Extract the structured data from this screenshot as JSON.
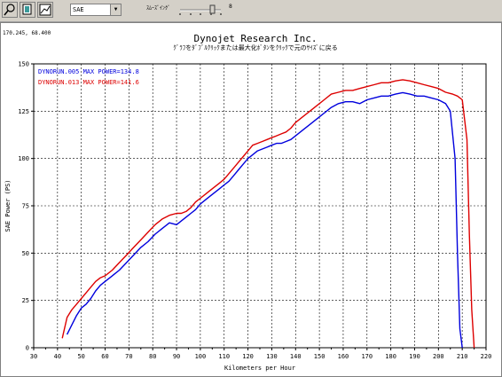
{
  "toolbar": {
    "buttons": [
      "zoom-icon",
      "copy-icon",
      "graph-icon"
    ],
    "correction_select": "SAE",
    "smoothing_label": "ｽﾑｰｽﾞｲﾝｸﾞ",
    "smoothing_value": "8"
  },
  "cursor_readout": "170.245, 68.400",
  "chart_data": {
    "type": "line",
    "title": "Dynojet  Research  Inc.",
    "subtitle": "ｸﾞﾗﾌをﾀﾞﾌﾞﾙｸﾘｯｸまたは最大化ﾎﾞﾀﾝをｸﾘｯｸで元のｻｲｽﾞに戻る",
    "xlabel": "Kilometers per Hour",
    "ylabel": "SAE Power (PS)",
    "xlim": [
      30,
      220
    ],
    "ylim": [
      0,
      150
    ],
    "xticks": [
      "30",
      "40",
      "50",
      "60",
      "70",
      "80",
      "90",
      "100",
      "110",
      "120",
      "130",
      "140",
      "150",
      "160",
      "170",
      "180",
      "190",
      "200",
      "210",
      "220"
    ],
    "yticks": [
      "0",
      "25",
      "50",
      "75",
      "100",
      "125",
      "150"
    ],
    "grid": true,
    "legend_position": "top-left",
    "series": [
      {
        "name": "DYNORUN.005  MAX POWER=134.8",
        "color": "#0000dd",
        "x": [
          44,
          46,
          48,
          50,
          52,
          54,
          56,
          58,
          60,
          63,
          66,
          69,
          72,
          75,
          78,
          81,
          84,
          87,
          90,
          92,
          94,
          96,
          98,
          100,
          102,
          104,
          106,
          108,
          110,
          112,
          114,
          116,
          118,
          120,
          122,
          124,
          126,
          128,
          130,
          132,
          134,
          136,
          138,
          140,
          143,
          146,
          149,
          152,
          155,
          158,
          161,
          164,
          167,
          170,
          173,
          176,
          179,
          182,
          185,
          188,
          191,
          194,
          197,
          200,
          203,
          205,
          207,
          208,
          209,
          210
        ],
        "y": [
          7,
          12,
          17,
          21,
          23,
          26,
          30,
          33,
          35,
          38,
          41,
          45,
          49,
          53,
          56,
          60,
          63,
          66,
          65,
          67,
          69,
          71,
          73,
          76,
          78,
          80,
          82,
          84,
          86,
          88,
          91,
          94,
          97,
          100,
          102,
          104,
          105,
          106,
          107,
          108,
          108,
          109,
          110,
          112,
          115,
          118,
          121,
          124,
          127,
          129,
          130,
          130,
          129,
          131,
          132,
          133,
          133,
          134,
          134.8,
          134,
          133,
          133,
          132,
          131,
          129,
          125,
          100,
          50,
          10,
          0
        ]
      },
      {
        "name": "DYNORUN.013  MAX POWER=141.6",
        "color": "#dd0000",
        "x": [
          42,
          44,
          46,
          48,
          50,
          52,
          54,
          56,
          58,
          60,
          63,
          66,
          69,
          72,
          75,
          78,
          81,
          84,
          87,
          90,
          92,
          94,
          96,
          98,
          100,
          102,
          104,
          106,
          108,
          110,
          112,
          114,
          116,
          118,
          120,
          122,
          124,
          126,
          128,
          130,
          132,
          134,
          136,
          138,
          140,
          143,
          146,
          149,
          152,
          155,
          158,
          161,
          164,
          167,
          170,
          173,
          176,
          179,
          182,
          185,
          188,
          191,
          194,
          197,
          200,
          203,
          206,
          208,
          210,
          212,
          213,
          214,
          215
        ],
        "y": [
          5,
          16,
          20,
          23,
          26,
          29,
          32,
          35,
          37,
          38,
          41,
          45,
          49,
          53,
          57,
          61,
          65,
          68,
          70,
          71,
          71,
          72,
          74,
          77,
          79,
          81,
          83,
          85,
          87,
          89,
          92,
          95,
          98,
          101,
          104,
          107,
          108,
          109,
          110,
          111,
          112,
          113,
          114,
          116,
          119,
          122,
          125,
          128,
          131,
          134,
          135,
          136,
          136,
          137,
          138,
          139,
          140,
          140,
          141,
          141.6,
          141,
          140,
          139,
          138,
          137,
          135,
          134,
          133,
          131,
          110,
          60,
          20,
          0
        ]
      }
    ]
  }
}
